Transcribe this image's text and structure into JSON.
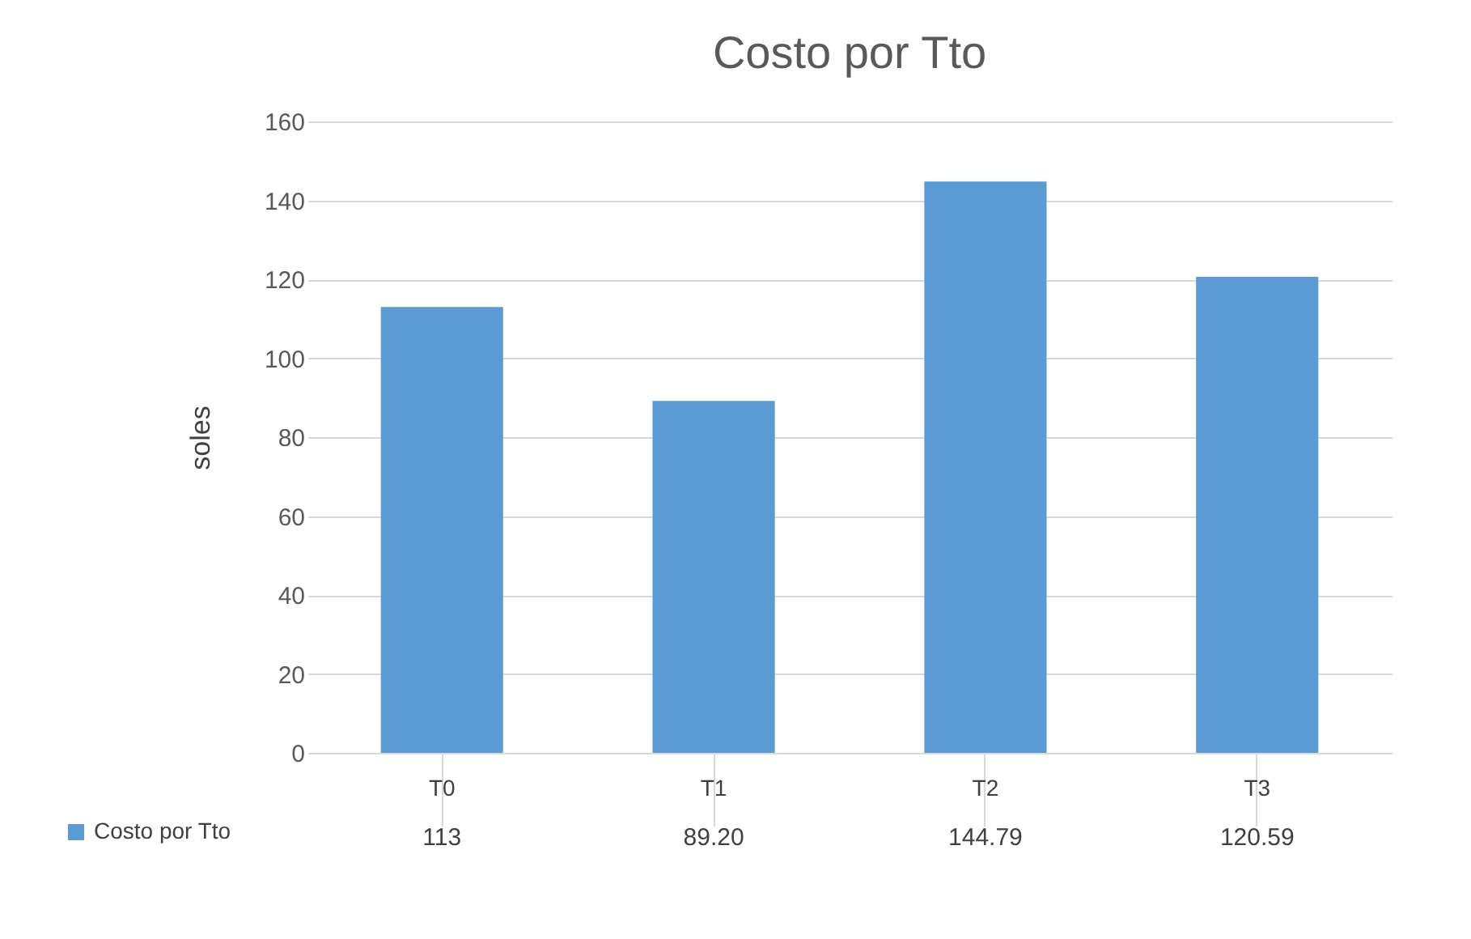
{
  "chart_data": {
    "type": "bar",
    "title": "Costo por Tto",
    "ylabel": "soles",
    "categories": [
      "T0",
      "T1",
      "T2",
      "T3"
    ],
    "series": [
      {
        "name": "Costo por Tto",
        "color": "#5b9bd5",
        "values": [
          113,
          89.2,
          144.79,
          120.59
        ],
        "value_labels": [
          "113",
          "89.20",
          "144.79",
          "120.59"
        ]
      }
    ],
    "ylim": [
      0,
      160
    ],
    "yticks": [
      0,
      20,
      40,
      60,
      80,
      100,
      120,
      140,
      160
    ],
    "grid": "y",
    "legend": "bottom"
  }
}
